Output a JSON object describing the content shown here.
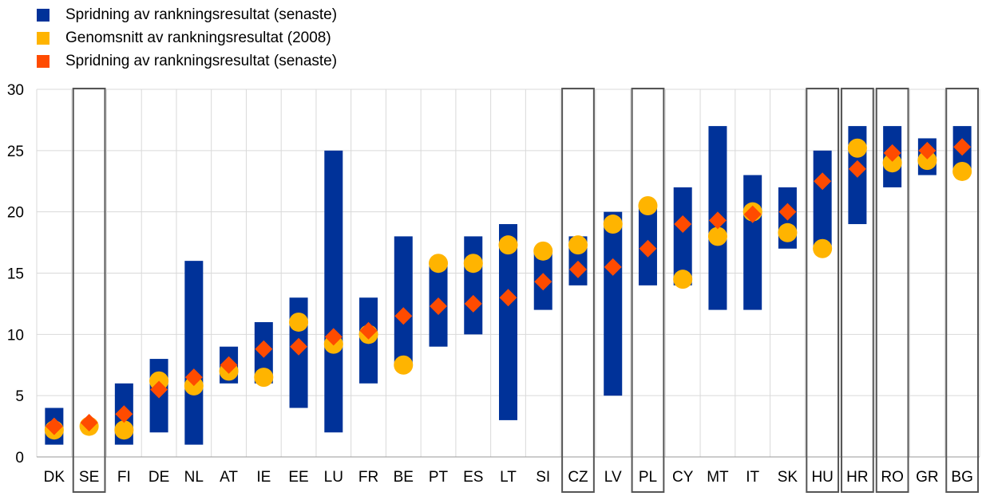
{
  "legend": {
    "range_label": "Spridning av rankningsresultat (senaste)",
    "avg_label": "Genomsnitt av rankningsresultat (2008)",
    "latest_label": "Spridning av rankningsresultat (senaste)"
  },
  "colors": {
    "range": "#003299",
    "avg": "#FFB400",
    "latest": "#FF4B00",
    "highlight_box": "#555555",
    "grid": "#d9d9d9"
  },
  "chart_data": {
    "type": "bar",
    "title": "",
    "xlabel": "",
    "ylabel": "",
    "ylim": [
      0,
      30
    ],
    "yticks": [
      0,
      5,
      10,
      15,
      20,
      25,
      30
    ],
    "grid": true,
    "legend_position": "top-left",
    "categories": [
      "DK",
      "SE",
      "FI",
      "DE",
      "NL",
      "AT",
      "IE",
      "EE",
      "LU",
      "FR",
      "BE",
      "PT",
      "ES",
      "LT",
      "SI",
      "CZ",
      "LV",
      "PL",
      "CY",
      "MT",
      "IT",
      "SK",
      "HU",
      "HR",
      "RO",
      "GR",
      "BG"
    ],
    "highlighted": [
      "SE",
      "CZ",
      "PL",
      "HU",
      "HR",
      "RO",
      "BG"
    ],
    "series": [
      {
        "name": "Spridning av rankningsresultat (senaste)",
        "kind": "range",
        "low": [
          1,
          null,
          1,
          2,
          1,
          6,
          6,
          4,
          2,
          6,
          7.5,
          9,
          10,
          3,
          12,
          14,
          5,
          14,
          14,
          12,
          12,
          17,
          17,
          19,
          22,
          23,
          23.5
        ],
        "high": [
          4,
          null,
          6,
          8,
          16,
          9,
          11,
          13,
          25,
          13,
          18,
          16,
          18,
          19,
          17,
          18,
          20,
          20.5,
          22,
          27,
          23,
          22,
          25,
          27,
          27,
          26,
          27
        ]
      },
      {
        "name": "Genomsnitt av rankningsresultat (2008)",
        "kind": "circle",
        "values": [
          2.2,
          2.5,
          2.2,
          6.2,
          5.8,
          7,
          6.5,
          11,
          9.2,
          10,
          7.5,
          15.8,
          15.8,
          17.3,
          16.8,
          17.3,
          19,
          20.5,
          14.5,
          18,
          20,
          18.3,
          17,
          25.2,
          24,
          24.2,
          23.3
        ]
      },
      {
        "name": "Spridning av rankningsresultat (senaste)",
        "kind": "diamond",
        "values": [
          2.5,
          2.8,
          3.5,
          5.5,
          6.5,
          7.5,
          8.8,
          9,
          9.8,
          10.3,
          11.5,
          12.3,
          12.5,
          13,
          14.3,
          15.3,
          15.5,
          17,
          19,
          19.3,
          19.8,
          20,
          22.5,
          23.5,
          24.8,
          25,
          25.3
        ]
      }
    ]
  }
}
